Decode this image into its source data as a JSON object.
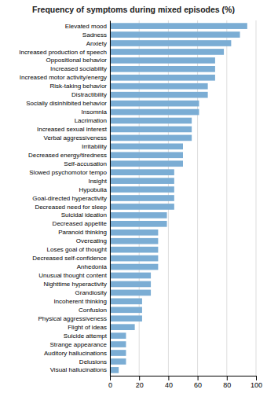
{
  "chart_data": {
    "type": "bar",
    "orientation": "horizontal",
    "title": "Frequency of symptoms during mixed episodes (%)",
    "categories": [
      "Elevated mood",
      "Sadness",
      "Anxiety",
      "Increased production of speech",
      "Oppositional behavior",
      "Increased sociability",
      "Increased motor activity/energy",
      "Risk-taking behavior",
      "Distractibility",
      "Socially disinhibited behavior",
      "Insomnia",
      "Lacrimation",
      "Increased sexual interest",
      "Verbal aggressiveness",
      "Irritability",
      "Decreased energy/tiredness",
      "Self-accusation",
      "Slowed psychomotor tempo",
      "Insight",
      "Hypobulia",
      "Goal-directed hyperactivity",
      "Decreased need for sleep",
      "Suicidal ideation",
      "Decreased appetite",
      "Paranoid thinking",
      "Overeating",
      "Loses goal of thought",
      "Decreased self-confidence",
      "Anhedonia",
      "Unusual thought content",
      "Nighttime hyperactivity",
      "Grandiosity",
      "Incoherent thinking",
      "Confusion",
      "Physical aggressiveness",
      "Flight of ideas",
      "Suicide attempt",
      "Strange appearance",
      "Auditory hallucinations",
      "Delusions",
      "Visual hallucinations"
    ],
    "values": [
      94,
      89,
      83,
      78,
      72,
      72,
      72,
      67,
      67,
      61,
      61,
      56,
      56,
      56,
      50,
      50,
      50,
      44,
      44,
      44,
      44,
      44,
      39,
      39,
      33,
      33,
      33,
      33,
      33,
      28,
      28,
      28,
      22,
      22,
      22,
      17,
      11,
      11,
      11,
      11,
      6
    ],
    "color": "#7badd4",
    "xlim": [
      0,
      100
    ],
    "xticks": [
      0,
      20,
      40,
      60,
      80,
      100
    ],
    "grid": true
  }
}
